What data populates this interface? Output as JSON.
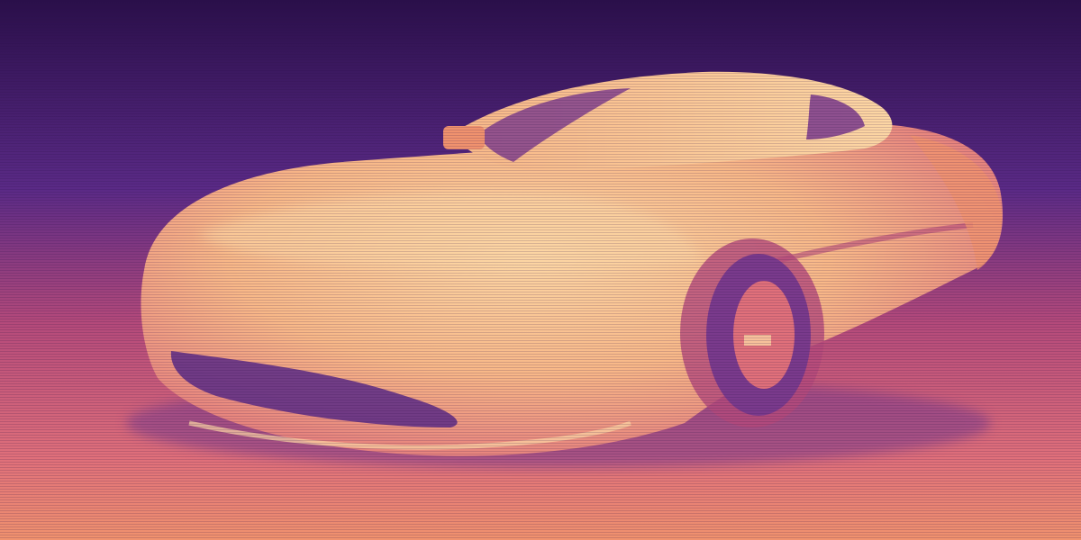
{
  "image": {
    "subject": "sports-car",
    "colors": {
      "deep_purple": "#2a0f4a",
      "purple": "#5a2a86",
      "violet": "#7a3a8c",
      "magenta": "#b44a7a",
      "coral": "#e0707a",
      "orange": "#f0926e",
      "peach": "#f8b888",
      "light_peach": "#fcd6a4"
    }
  }
}
